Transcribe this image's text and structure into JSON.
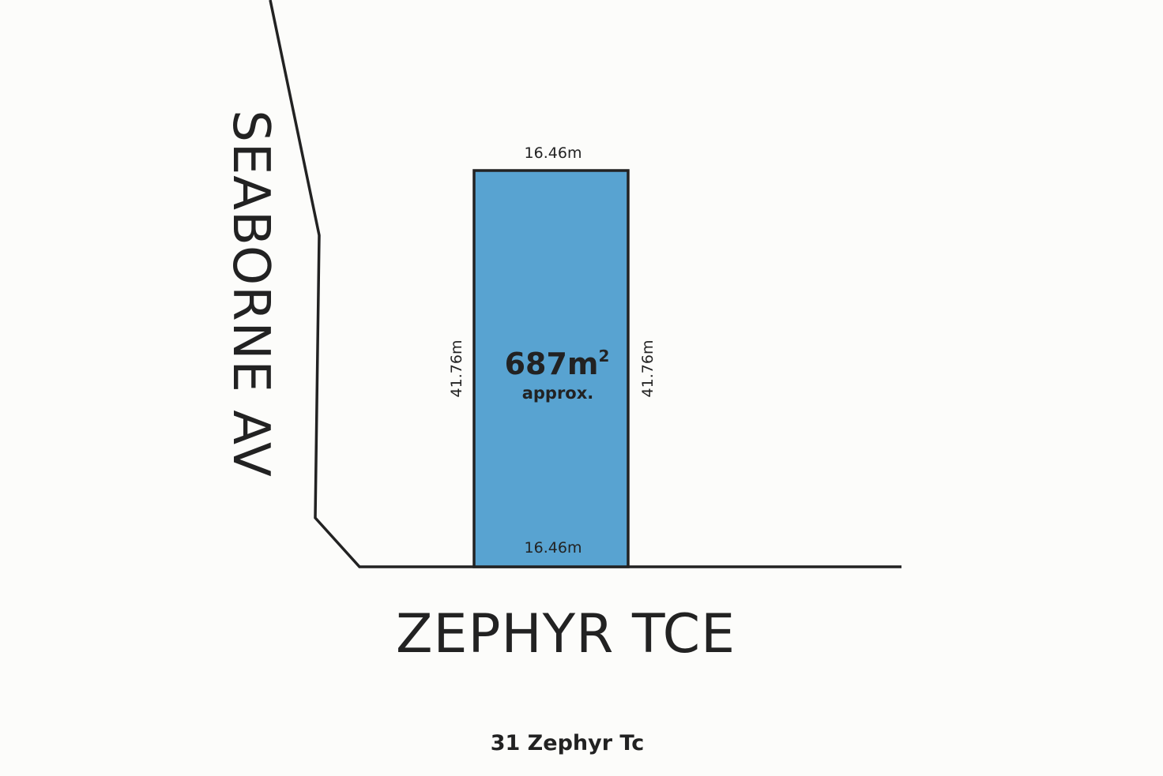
{
  "plan": {
    "street_side": "SEABORNE AV",
    "street_front": "ZEPHYR TCE",
    "lot": {
      "top_frontage": "16.46m",
      "bottom_frontage": "16.46m",
      "left_depth": "41.76m",
      "right_depth": "41.76m",
      "area_value": "687m",
      "area_superscript": "2",
      "area_note": "approx."
    },
    "address": "31 Zephyr Tc"
  },
  "colors": {
    "lot_fill": "#58a3d1",
    "line": "#222222",
    "background": "#fcfcfa"
  }
}
